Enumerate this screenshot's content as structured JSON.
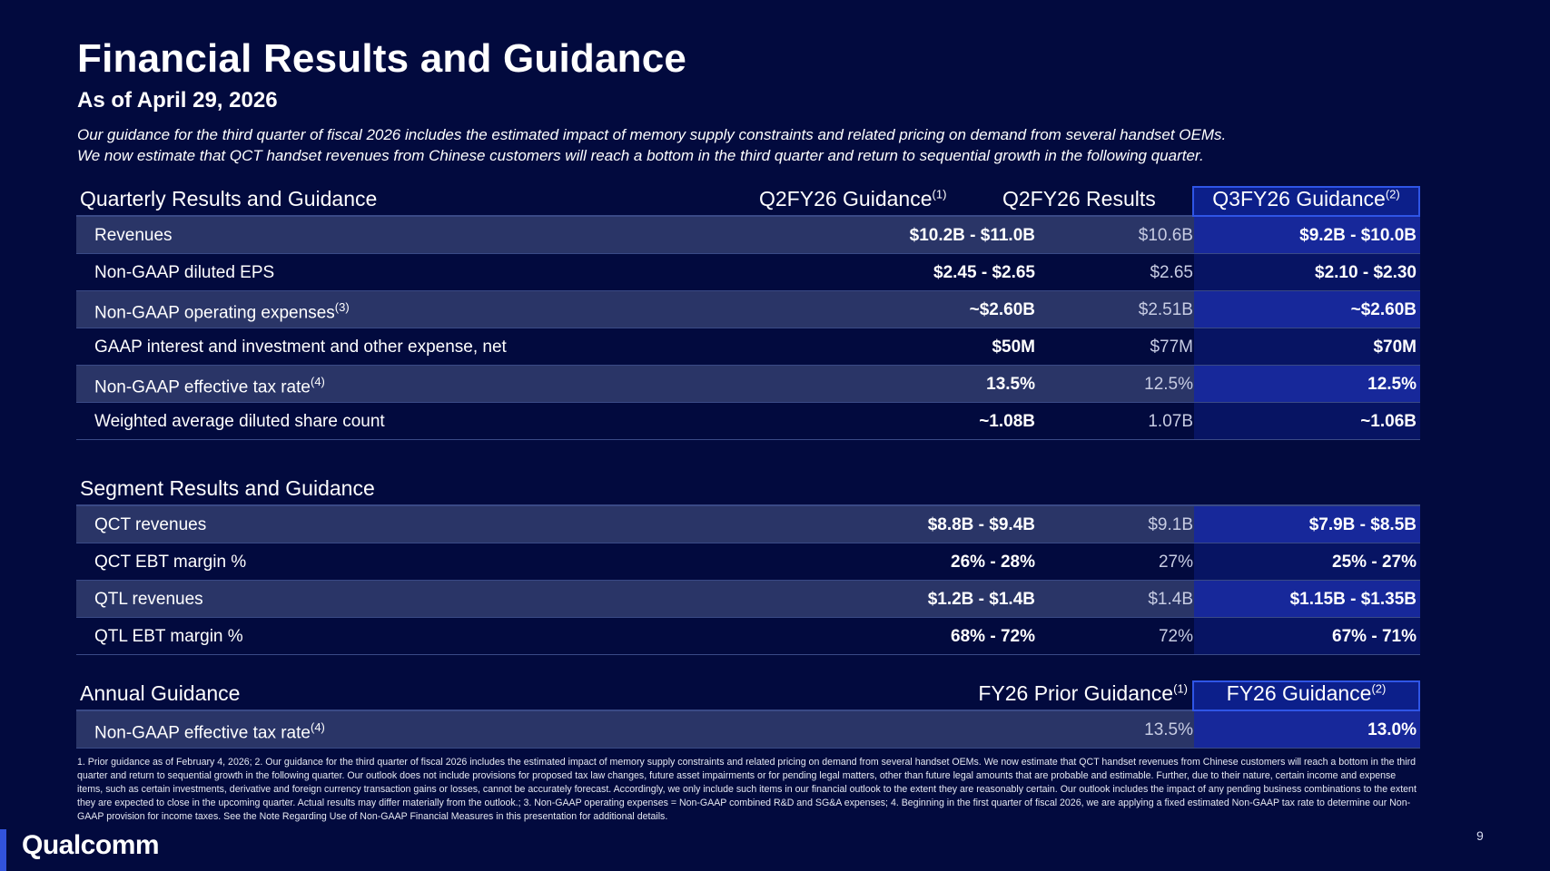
{
  "title": "Financial Results and Guidance",
  "subtitle": "As of April 29, 2026",
  "intro": [
    "Our guidance for the third quarter of fiscal 2026 includes the estimated impact of memory supply constraints and related pricing on demand from several handset OEMs.",
    "We now estimate that QCT handset revenues from Chinese customers will reach a bottom in the third quarter and return to sequential growth in the following quarter."
  ],
  "quarterly": {
    "title": "Quarterly Results and Guidance",
    "col1": "Q2FY26 Guidance",
    "col1_sup": "(1)",
    "col2": "Q2FY26 Results",
    "col3": "Q3FY26 Guidance",
    "col3_sup": "(2)",
    "rows": [
      {
        "label": "Revenues",
        "sup": "",
        "c1": "$10.2B - $11.0B",
        "c2": "$10.6B",
        "c3": "$9.2B - $10.0B"
      },
      {
        "label": "Non-GAAP diluted EPS",
        "sup": "",
        "c1": "$2.45 - $2.65",
        "c2": "$2.65",
        "c3": "$2.10 - $2.30"
      },
      {
        "label": "Non-GAAP operating expenses",
        "sup": "(3)",
        "c1": "~$2.60B",
        "c2": "$2.51B",
        "c3": "~$2.60B"
      },
      {
        "label": "GAAP interest and investment and other expense, net",
        "sup": "",
        "c1": "$50M",
        "c2": "$77M",
        "c3": "$70M"
      },
      {
        "label": "Non-GAAP effective tax rate",
        "sup": "(4)",
        "c1": "13.5%",
        "c2": "12.5%",
        "c3": "12.5%"
      },
      {
        "label": "Weighted average diluted share count",
        "sup": "",
        "c1": "~1.08B",
        "c2": "1.07B",
        "c3": "~1.06B"
      }
    ]
  },
  "segment": {
    "title": "Segment Results and Guidance",
    "rows": [
      {
        "label": "QCT revenues",
        "c1": "$8.8B - $9.4B",
        "c2": "$9.1B",
        "c3": "$7.9B - $8.5B"
      },
      {
        "label": "QCT EBT margin %",
        "c1": "26% - 28%",
        "c2": "27%",
        "c3": "25% - 27%"
      },
      {
        "label": "QTL revenues",
        "c1": "$1.2B - $1.4B",
        "c2": "$1.4B",
        "c3": "$1.15B - $1.35B"
      },
      {
        "label": "QTL EBT margin %",
        "c1": "68% - 72%",
        "c2": "72%",
        "c3": "67% - 71%"
      }
    ]
  },
  "annual": {
    "title": "Annual Guidance",
    "col2": "FY26 Prior Guidance",
    "col2_sup": "(1)",
    "col3": "FY26 Guidance",
    "col3_sup": "(2)",
    "row": {
      "label": "Non-GAAP effective tax rate",
      "sup": "(4)",
      "c2": "13.5%",
      "c3": "13.0%"
    }
  },
  "footnote": "1. Prior guidance as of February 4, 2026; 2. Our guidance for the third quarter of fiscal 2026 includes the estimated impact of memory supply constraints and related pricing on demand from several handset OEMs. We now estimate that QCT handset revenues from Chinese customers will reach a bottom in the third quarter and return to sequential growth in the following quarter. Our outlook does not include provisions for proposed tax law changes, future asset impairments or for pending legal matters, other than future legal amounts that are probable and estimable. Further, due to their nature, certain income and expense items, such as certain investments, derivative and foreign currency transaction gains or losses, cannot be accurately forecast. Accordingly, we only include such items in our financial outlook to the extent they are reasonably certain. Our outlook includes the impact of any pending business combinations to the extent they are expected to close in the upcoming quarter. Actual results may differ materially from the outlook.; 3. Non-GAAP operating expenses = Non-GAAP combined R&D and SG&A expenses; 4. Beginning in the first quarter of fiscal 2026, we are applying a fixed estimated Non-GAAP tax rate to determine our Non-GAAP provision for income taxes. See the Note Regarding Use of Non-GAAP Financial Measures in this presentation for additional details.",
  "logo": "Qualcomm",
  "page_number": "9"
}
